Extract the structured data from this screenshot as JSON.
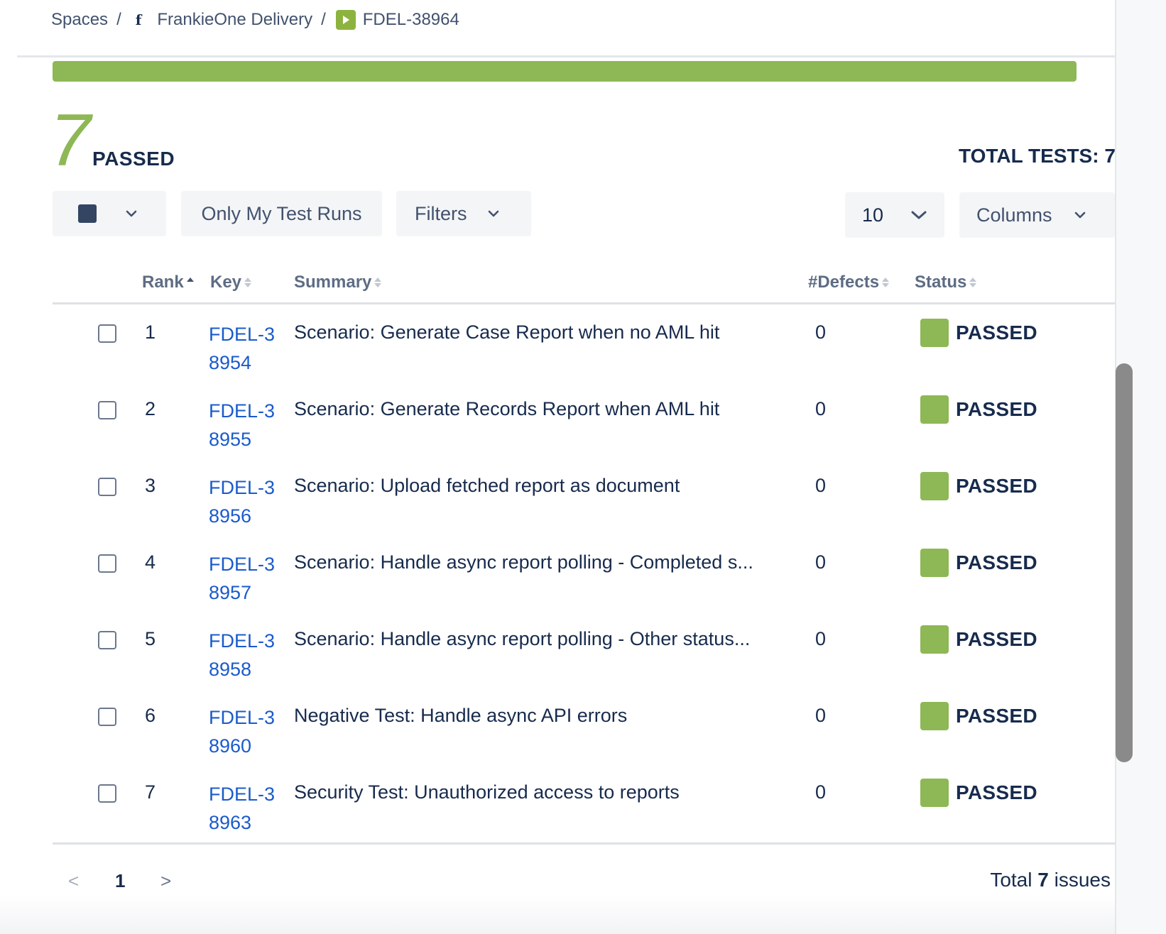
{
  "breadcrumb": {
    "spaces": "Spaces",
    "separator": "/",
    "space_icon_letter": "f",
    "space_name": "FrankieOne Delivery",
    "issue_key": "FDEL-38964"
  },
  "summary": {
    "passed_count": "7",
    "passed_label": "PASSED",
    "total_tests": "TOTAL TESTS: 7",
    "progress_passed_fraction": 1.0,
    "progress_color": "#8db855"
  },
  "toolbar": {
    "only_mine_label": "Only My Test Runs",
    "filters_label": "Filters",
    "page_size": "10",
    "columns_label": "Columns"
  },
  "table": {
    "headers": {
      "rank": "Rank",
      "key": "Key",
      "summary": "Summary",
      "defects": "#Defects",
      "status": "Status"
    },
    "rows": [
      {
        "rank": "1",
        "key": "FDEL-38954",
        "summary": "Scenario: Generate Case Report when no AML hit",
        "defects": "0",
        "status": "PASSED"
      },
      {
        "rank": "2",
        "key": "FDEL-38955",
        "summary": "Scenario: Generate Records Report when AML hit",
        "defects": "0",
        "status": "PASSED"
      },
      {
        "rank": "3",
        "key": "FDEL-38956",
        "summary": "Scenario: Upload fetched report as document",
        "defects": "0",
        "status": "PASSED"
      },
      {
        "rank": "4",
        "key": "FDEL-38957",
        "summary": "Scenario: Handle async report polling - Completed s...",
        "defects": "0",
        "status": "PASSED"
      },
      {
        "rank": "5",
        "key": "FDEL-38958",
        "summary": "Scenario: Handle async report polling - Other status...",
        "defects": "0",
        "status": "PASSED"
      },
      {
        "rank": "6",
        "key": "FDEL-38960",
        "summary": "Negative Test: Handle async API errors",
        "defects": "0",
        "status": "PASSED"
      },
      {
        "rank": "7",
        "key": "FDEL-38963",
        "summary": "Security Test: Unauthorized access to reports",
        "defects": "0",
        "status": "PASSED"
      }
    ]
  },
  "pagination": {
    "prev": "<",
    "current_page": "1",
    "next": ">",
    "total_prefix": "Total",
    "total_count": "7",
    "total_suffix": "issues"
  },
  "colors": {
    "passed": "#8db855",
    "link": "#1a5bcc"
  }
}
